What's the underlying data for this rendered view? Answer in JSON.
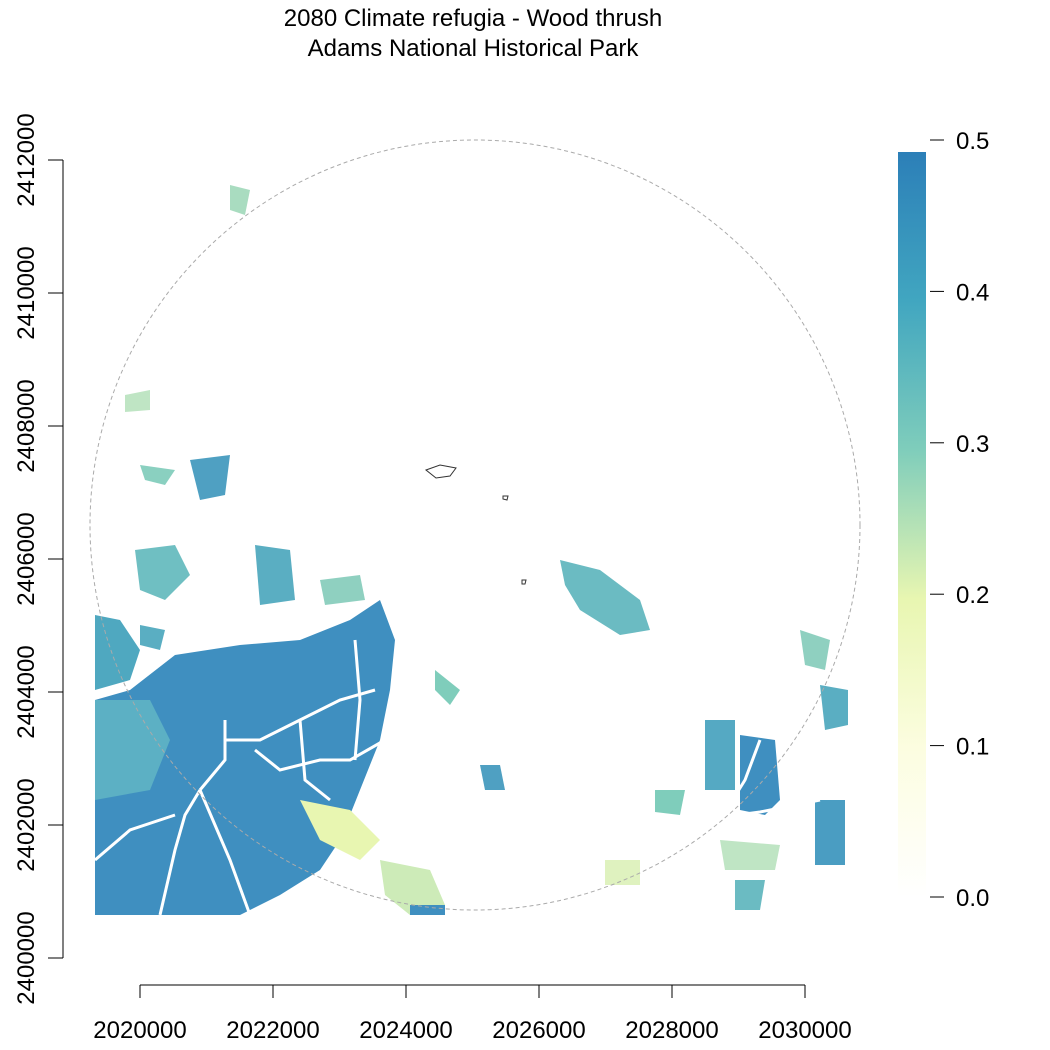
{
  "title": "2080 Climate refugia - Wood thrush",
  "subtitle": "Adams National Historical Park",
  "x_axis": {
    "ticks": [
      2020000,
      2022000,
      2024000,
      2026000,
      2028000,
      2030000
    ],
    "labels": [
      "2020000",
      "2022000",
      "2024000",
      "2026000",
      "2028000",
      "2030000"
    ]
  },
  "y_axis": {
    "ticks": [
      2400000,
      2402000,
      2404000,
      2406000,
      2408000,
      2410000,
      2412000
    ],
    "labels": [
      "2400000",
      "2402000",
      "2404000",
      "2406000",
      "2408000",
      "2410000",
      "2412000"
    ]
  },
  "legend": {
    "labels": [
      "0.0",
      "0.1",
      "0.2",
      "0.3",
      "0.4",
      "0.5"
    ],
    "values": [
      0.0,
      0.1,
      0.2,
      0.3,
      0.4,
      0.5
    ],
    "colors": [
      "#ffffff",
      "#fcfde0",
      "#e8f6b1",
      "#7fcdbb",
      "#41a6c0",
      "#2c7fb8"
    ]
  },
  "map": {
    "buffer_line_color": "#aaaaaa",
    "road_color": "#ffffff",
    "boundary_color": "#333333",
    "high_color": "#2c7fb8",
    "mid_color": "#41a6c0",
    "teal_color": "#7fcdbb",
    "low_color": "#e8f6b1"
  }
}
